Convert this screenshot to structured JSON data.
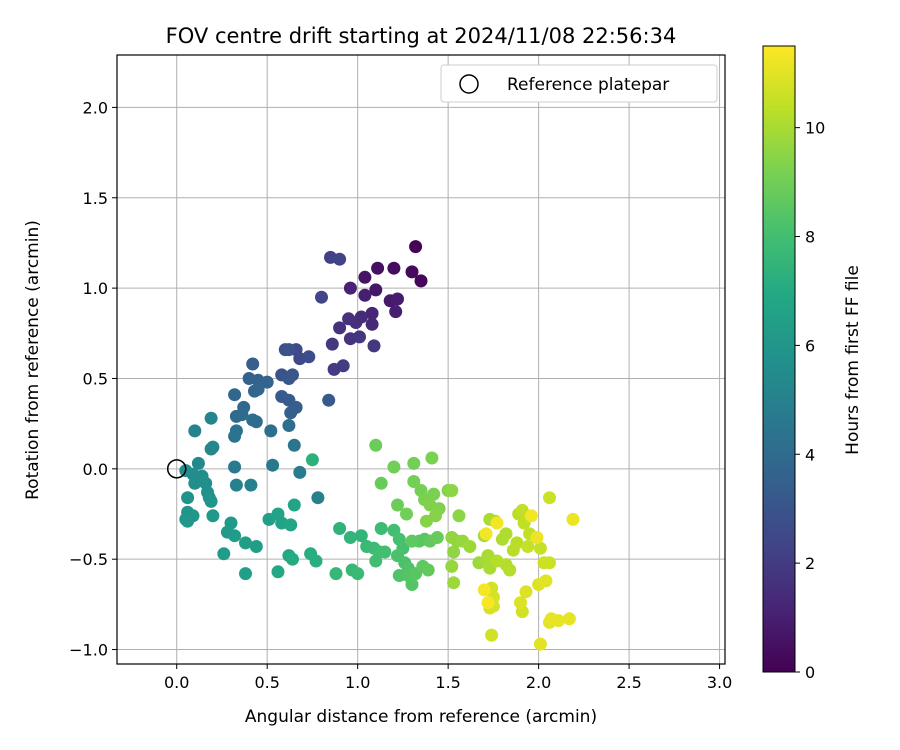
{
  "chart_data": {
    "type": "scatter",
    "title": "FOV centre drift starting at 2024/11/08 22:56:34",
    "xlabel": "Angular distance from reference (arcmin)",
    "ylabel": "Rotation from reference (arcmin)",
    "xlim": [
      -0.33,
      3.03
    ],
    "ylim": [
      -1.08,
      2.29
    ],
    "xticks": [
      "0.0",
      "0.5",
      "1.0",
      "1.5",
      "2.0",
      "2.5",
      "3.0"
    ],
    "yticks": [
      "−1.0",
      "−0.5",
      "0.0",
      "0.5",
      "1.0",
      "1.5",
      "2.0"
    ],
    "grid": true,
    "legend": {
      "position": "top-right",
      "entries": [
        "Reference platepar"
      ]
    },
    "reference_point": {
      "x": 0.0,
      "y": 0.0,
      "marker": "open-circle"
    },
    "colorbar": {
      "label": "Hours from first FF file",
      "range": [
        0,
        11.5
      ],
      "ticks": [
        "0",
        "2",
        "4",
        "6",
        "8",
        "10"
      ],
      "colormap": "viridis"
    },
    "points": [
      [
        1.32,
        1.23,
        0.1
      ],
      [
        1.35,
        1.04,
        0.2
      ],
      [
        1.3,
        1.09,
        0.3
      ],
      [
        1.2,
        1.11,
        0.4
      ],
      [
        1.11,
        1.11,
        0.5
      ],
      [
        1.04,
        1.06,
        0.6
      ],
      [
        1.1,
        0.99,
        0.7
      ],
      [
        1.18,
        0.93,
        0.8
      ],
      [
        1.22,
        0.94,
        0.9
      ],
      [
        1.21,
        0.87,
        1.0
      ],
      [
        1.04,
        0.96,
        1.0
      ],
      [
        0.96,
        1.0,
        1.1
      ],
      [
        1.08,
        0.86,
        1.2
      ],
      [
        1.08,
        0.8,
        1.3
      ],
      [
        1.02,
        0.84,
        1.4
      ],
      [
        0.99,
        0.81,
        1.5
      ],
      [
        0.95,
        0.83,
        1.6
      ],
      [
        0.9,
        0.78,
        1.6
      ],
      [
        0.96,
        0.72,
        1.7
      ],
      [
        1.01,
        0.73,
        1.8
      ],
      [
        1.09,
        0.68,
        1.9
      ],
      [
        0.86,
        0.69,
        1.9
      ],
      [
        0.87,
        0.55,
        2.0
      ],
      [
        0.92,
        0.57,
        2.0
      ],
      [
        0.85,
        1.17,
        2.2
      ],
      [
        0.9,
        1.16,
        2.3
      ],
      [
        0.8,
        0.95,
        2.4
      ],
      [
        0.68,
        0.61,
        2.5
      ],
      [
        0.66,
        0.66,
        2.6
      ],
      [
        0.73,
        0.62,
        2.7
      ],
      [
        0.6,
        0.66,
        2.8
      ],
      [
        0.62,
        0.66,
        2.9
      ],
      [
        0.58,
        0.52,
        3.0
      ],
      [
        0.64,
        0.52,
        3.1
      ],
      [
        0.62,
        0.5,
        3.1
      ],
      [
        0.84,
        0.38,
        3.2
      ],
      [
        0.58,
        0.4,
        3.3
      ],
      [
        0.62,
        0.38,
        3.3
      ],
      [
        0.66,
        0.34,
        3.4
      ],
      [
        0.63,
        0.31,
        3.5
      ],
      [
        0.42,
        0.58,
        3.5
      ],
      [
        0.4,
        0.5,
        3.6
      ],
      [
        0.45,
        0.49,
        3.6
      ],
      [
        0.5,
        0.48,
        3.7
      ],
      [
        0.43,
        0.43,
        3.7
      ],
      [
        0.45,
        0.44,
        3.8
      ],
      [
        0.32,
        0.41,
        3.8
      ],
      [
        0.37,
        0.34,
        3.9
      ],
      [
        0.33,
        0.29,
        4.0
      ],
      [
        0.36,
        0.3,
        4.0
      ],
      [
        0.42,
        0.27,
        4.1
      ],
      [
        0.44,
        0.26,
        4.1
      ],
      [
        0.62,
        0.24,
        4.2
      ],
      [
        0.52,
        0.21,
        4.2
      ],
      [
        0.33,
        0.21,
        4.3
      ],
      [
        0.32,
        0.18,
        4.4
      ],
      [
        0.65,
        0.13,
        4.5
      ],
      [
        0.53,
        0.02,
        4.6
      ],
      [
        0.32,
        0.01,
        4.7
      ],
      [
        0.68,
        -0.02,
        4.8
      ],
      [
        0.78,
        -0.16,
        4.9
      ],
      [
        0.33,
        -0.09,
        5.0
      ],
      [
        0.41,
        -0.09,
        5.0
      ],
      [
        0.1,
        0.21,
        5.1
      ],
      [
        0.19,
        0.28,
        5.2
      ],
      [
        0.19,
        0.11,
        5.3
      ],
      [
        0.2,
        0.12,
        5.3
      ],
      [
        0.12,
        0.03,
        5.4
      ],
      [
        0.05,
        -0.01,
        5.5
      ],
      [
        0.09,
        -0.03,
        5.5
      ],
      [
        0.14,
        -0.04,
        5.6
      ],
      [
        0.1,
        -0.08,
        5.6
      ],
      [
        0.16,
        -0.08,
        5.7
      ],
      [
        0.17,
        -0.13,
        5.7
      ],
      [
        0.18,
        -0.16,
        5.8
      ],
      [
        0.06,
        -0.16,
        5.8
      ],
      [
        0.19,
        -0.18,
        5.9
      ],
      [
        0.06,
        -0.24,
        5.9
      ],
      [
        0.09,
        -0.26,
        6.0
      ],
      [
        0.05,
        -0.28,
        6.0
      ],
      [
        0.06,
        -0.29,
        6.1
      ],
      [
        0.2,
        -0.26,
        6.1
      ],
      [
        0.3,
        -0.3,
        6.2
      ],
      [
        0.28,
        -0.35,
        6.2
      ],
      [
        0.32,
        -0.37,
        6.3
      ],
      [
        0.26,
        -0.47,
        6.3
      ],
      [
        0.38,
        -0.41,
        6.4
      ],
      [
        0.44,
        -0.43,
        6.4
      ],
      [
        0.38,
        -0.58,
        6.5
      ],
      [
        0.51,
        -0.28,
        6.5
      ],
      [
        0.56,
        -0.25,
        6.6
      ],
      [
        0.58,
        -0.3,
        6.6
      ],
      [
        0.65,
        -0.2,
        6.7
      ],
      [
        0.63,
        -0.31,
        6.8
      ],
      [
        0.62,
        -0.48,
        6.9
      ],
      [
        0.56,
        -0.57,
        6.9
      ],
      [
        0.64,
        -0.5,
        7.0
      ],
      [
        0.74,
        -0.47,
        7.1
      ],
      [
        0.77,
        -0.51,
        7.2
      ],
      [
        0.75,
        0.05,
        7.3
      ],
      [
        0.9,
        -0.33,
        7.4
      ],
      [
        0.96,
        -0.38,
        7.5
      ],
      [
        1.02,
        -0.37,
        7.5
      ],
      [
        0.88,
        -0.58,
        7.6
      ],
      [
        0.97,
        -0.56,
        7.6
      ],
      [
        1.0,
        -0.58,
        7.7
      ],
      [
        1.05,
        -0.43,
        7.7
      ],
      [
        1.09,
        -0.44,
        7.8
      ],
      [
        1.13,
        -0.33,
        7.8
      ],
      [
        1.1,
        -0.51,
        7.9
      ],
      [
        1.12,
        -0.46,
        7.9
      ],
      [
        1.15,
        -0.46,
        8.0
      ],
      [
        1.2,
        -0.34,
        8.0
      ],
      [
        1.23,
        -0.39,
        8.1
      ],
      [
        1.25,
        -0.44,
        8.1
      ],
      [
        1.22,
        -0.48,
        8.2
      ],
      [
        1.26,
        -0.52,
        8.2
      ],
      [
        1.28,
        -0.55,
        8.3
      ],
      [
        1.23,
        -0.59,
        8.3
      ],
      [
        1.28,
        -0.59,
        8.4
      ],
      [
        1.3,
        -0.64,
        8.4
      ],
      [
        1.32,
        -0.58,
        8.5
      ],
      [
        1.34,
        -0.4,
        8.5
      ],
      [
        1.37,
        -0.39,
        8.5
      ],
      [
        1.3,
        -0.4,
        8.6
      ],
      [
        1.36,
        -0.54,
        8.6
      ],
      [
        1.39,
        -0.56,
        8.7
      ],
      [
        1.4,
        -0.4,
        8.7
      ],
      [
        1.44,
        -0.38,
        8.8
      ],
      [
        1.13,
        -0.08,
        8.8
      ],
      [
        1.1,
        0.13,
        8.9
      ],
      [
        1.22,
        -0.2,
        8.9
      ],
      [
        1.2,
        0.01,
        9.0
      ],
      [
        1.27,
        -0.25,
        9.0
      ],
      [
        1.31,
        0.03,
        9.0
      ],
      [
        1.35,
        -0.12,
        9.1
      ],
      [
        1.31,
        -0.07,
        9.1
      ],
      [
        1.37,
        -0.17,
        9.2
      ],
      [
        1.41,
        0.06,
        9.2
      ],
      [
        1.42,
        -0.14,
        9.2
      ],
      [
        1.45,
        -0.22,
        9.3
      ],
      [
        1.4,
        -0.2,
        9.3
      ],
      [
        1.43,
        -0.26,
        9.4
      ],
      [
        1.38,
        -0.29,
        9.4
      ],
      [
        1.5,
        -0.12,
        9.4
      ],
      [
        1.52,
        -0.12,
        9.5
      ],
      [
        1.56,
        -0.26,
        9.5
      ],
      [
        1.52,
        -0.38,
        9.6
      ],
      [
        1.55,
        -0.4,
        9.6
      ],
      [
        1.53,
        -0.46,
        9.6
      ],
      [
        1.58,
        -0.4,
        9.7
      ],
      [
        1.52,
        -0.54,
        9.7
      ],
      [
        1.62,
        -0.43,
        9.8
      ],
      [
        1.53,
        -0.63,
        9.8
      ],
      [
        1.67,
        -0.52,
        9.8
      ],
      [
        1.7,
        -0.37,
        9.9
      ],
      [
        1.71,
        -0.51,
        9.9
      ],
      [
        1.73,
        -0.55,
        10.0
      ],
      [
        1.72,
        -0.48,
        10.0
      ],
      [
        1.73,
        -0.28,
        10.0
      ],
      [
        1.76,
        -0.29,
        10.1
      ],
      [
        1.8,
        -0.39,
        10.1
      ],
      [
        1.82,
        -0.36,
        10.1
      ],
      [
        1.77,
        -0.51,
        10.2
      ],
      [
        1.82,
        -0.53,
        10.2
      ],
      [
        1.84,
        -0.56,
        10.2
      ],
      [
        1.86,
        -0.45,
        10.3
      ],
      [
        1.88,
        -0.41,
        10.3
      ],
      [
        1.89,
        -0.25,
        10.3
      ],
      [
        1.91,
        -0.23,
        10.4
      ],
      [
        1.92,
        -0.3,
        10.4
      ],
      [
        1.95,
        -0.36,
        10.4
      ],
      [
        1.94,
        -0.43,
        10.5
      ],
      [
        1.99,
        -0.38,
        10.5
      ],
      [
        2.01,
        -0.44,
        10.5
      ],
      [
        2.03,
        -0.52,
        10.6
      ],
      [
        2.06,
        -0.52,
        10.6
      ],
      [
        2.06,
        -0.16,
        10.6
      ],
      [
        1.91,
        -0.79,
        10.7
      ],
      [
        1.74,
        -0.92,
        10.7
      ],
      [
        1.74,
        -0.66,
        10.7
      ],
      [
        1.73,
        -0.77,
        10.8
      ],
      [
        1.75,
        -0.71,
        10.8
      ],
      [
        1.75,
        -0.76,
        10.8
      ],
      [
        1.9,
        -0.74,
        10.9
      ],
      [
        1.93,
        -0.68,
        10.9
      ],
      [
        2.0,
        -0.64,
        10.9
      ],
      [
        2.04,
        -0.62,
        11.0
      ],
      [
        2.01,
        -0.97,
        11.0
      ],
      [
        2.06,
        -0.85,
        11.0
      ],
      [
        2.07,
        -0.83,
        11.1
      ],
      [
        2.11,
        -0.84,
        11.1
      ],
      [
        2.17,
        -0.83,
        11.1
      ],
      [
        2.19,
        -0.28,
        11.2
      ],
      [
        1.99,
        -0.38,
        11.2
      ],
      [
        1.96,
        -0.26,
        11.3
      ],
      [
        1.77,
        -0.3,
        11.3
      ],
      [
        1.71,
        -0.36,
        11.3
      ],
      [
        1.7,
        -0.67,
        11.4
      ],
      [
        1.72,
        -0.74,
        11.4
      ]
    ]
  }
}
